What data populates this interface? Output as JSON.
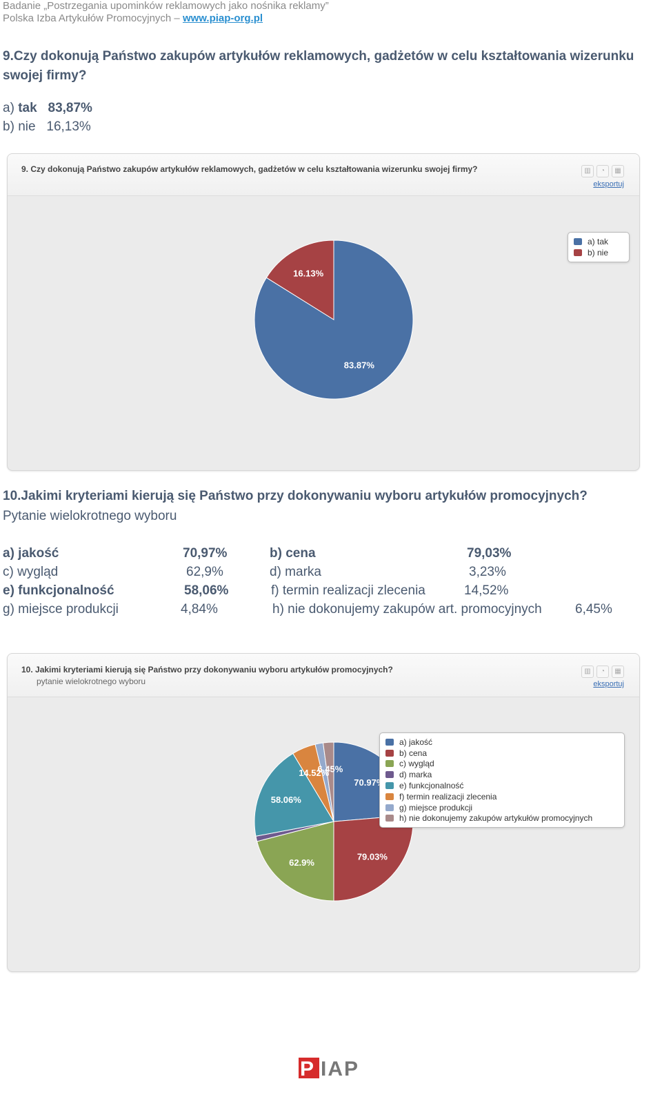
{
  "header": {
    "line1": "Badanie „Postrzegania upominków reklamowych jako nośnika reklamy”",
    "line2_text": "Polska Izba Artykułów Promocyjnych – ",
    "line2_link": "www.piap-org.pl"
  },
  "q9": {
    "title": "9.Czy dokonują Państwo zakupów artykułów reklamowych, gadżetów w celu kształtowania wizerunku swojej firmy?",
    "answers": [
      {
        "label": "a)",
        "name": "tak",
        "value": "83,87%"
      },
      {
        "label": "b)",
        "name": "nie",
        "value": "16,13%"
      }
    ]
  },
  "q10": {
    "title": "10.Jakimi kryteriami kierują się Państwo przy dokonywaniu wyboru artykułów promocyjnych?",
    "subtitle": "Pytanie wielokrotnego wyboru",
    "answers": [
      {
        "label": "a) jakość",
        "value": "70,97%"
      },
      {
        "label": "b) cena",
        "value": "79,03%"
      },
      {
        "label": "c) wygląd",
        "value": "62,9%"
      },
      {
        "label": "d) marka",
        "value": "3,23%"
      },
      {
        "label": "e) funkcjonalność",
        "value": "58,06%"
      },
      {
        "label": "f) termin realizacji zlecenia",
        "value": "14,52%"
      },
      {
        "label": "g) miejsce produkcji",
        "value": "4,84%"
      },
      {
        "label": "h) nie dokonujemy zakupów art. promocyjnych",
        "value": "6,45%"
      }
    ]
  },
  "toolbar": {
    "export_label": "eksportuj",
    "icons": [
      "bar-chart-icon",
      "pie-chart-icon",
      "table-icon"
    ]
  },
  "chart_data": [
    {
      "type": "pie",
      "title": "9.  Czy dokonują Państwo zakupów artykułów reklamowych, gadżetów w celu kształtowania wizerunku swojej firmy?",
      "subtitle": "",
      "categories": [
        "a) tak",
        "b) nie"
      ],
      "values": [
        83.87,
        16.13
      ],
      "data_labels": [
        "83.87%",
        "16.13%"
      ],
      "colors": [
        "#4a71a5",
        "#a64244"
      ],
      "legend": "top-right"
    },
    {
      "type": "pie",
      "title": "10.  Jakimi kryteriami kierują się Państwo przy dokonywaniu wyboru artykułów promocyjnych?",
      "subtitle": "pytanie wielokrotnego wyboru",
      "categories": [
        "a) jakość",
        "b) cena",
        "c) wygląd",
        "d) marka",
        "e) funkcjonalność",
        "f) termin realizacji zlecenia",
        "g) miejsce produkcji",
        "h) nie dokonujemy zakupów artykułów promocyjnych"
      ],
      "values": [
        70.97,
        79.03,
        62.9,
        3.23,
        58.06,
        14.52,
        4.84,
        6.45
      ],
      "data_labels": [
        "70.97%",
        "79.03%",
        "62.9%",
        "",
        "58.06%",
        "14.52%",
        "",
        "6.45%"
      ],
      "colors": [
        "#4a71a5",
        "#a64244",
        "#8aa554",
        "#6e5a8e",
        "#4596aa",
        "#d9853f",
        "#94a9cc",
        "#a98a8a"
      ],
      "legend": "top-right"
    }
  ],
  "logo": {
    "text": "PIAP"
  }
}
